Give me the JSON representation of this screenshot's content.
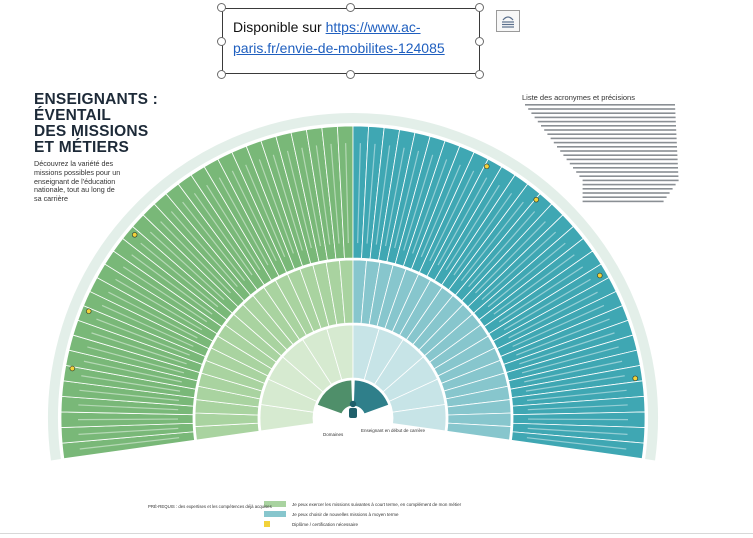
{
  "textbox": {
    "prefix": "Disponible sur ",
    "link": "https://www.ac-paris.fr/envie-de-mobilites-124085"
  },
  "poster": {
    "title_lines": [
      "ENSEIGNANTS :",
      "ÉVENTAIL",
      "DES MISSIONS",
      "ET MÉTIERS"
    ],
    "subtitle": "Découvrez la variété des missions possibles pour un enseignant de l'éducation nationale, tout au long de sa carrière",
    "acronyms_title": "Liste des acronymes et précisions",
    "center_label": "Enseignant en début de carrière",
    "domains_label": "Domaines",
    "legend": [
      "Je peux exercer les missions suivantes à court terme, en complément de mon métier",
      "Je peux choisir de nouvelles missions à moyen terme",
      "Diplôme / certification nécessaire"
    ],
    "prerequisites_note": "PRÉ-REQUIS : des expertises et les compétences déjà acquises"
  },
  "colors": {
    "green_dark": "#79b878",
    "green_mid": "#a9d3a0",
    "green_light": "#d6ead0",
    "teal_dark": "#3fa7b3",
    "teal_mid": "#87c6cd",
    "teal_light": "#c7e4e7",
    "title": "#1d2a38",
    "link": "#1f5fbf"
  },
  "icons": {
    "layout_options": "layout-options-icon",
    "person": "person-icon"
  }
}
